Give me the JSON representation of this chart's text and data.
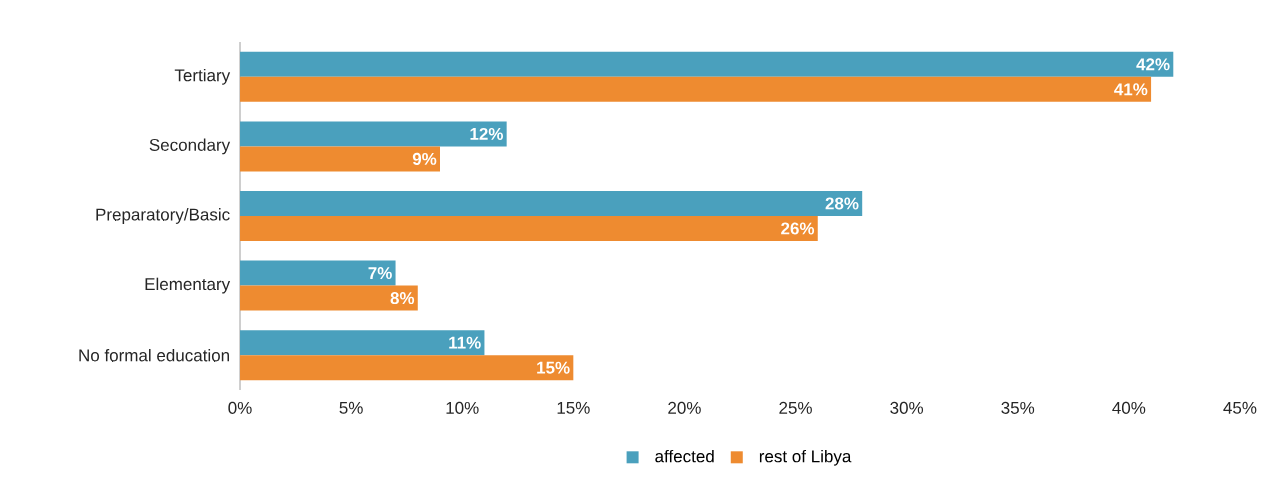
{
  "chart_data": {
    "type": "bar",
    "orientation": "horizontal",
    "categories": [
      "Tertiary",
      "Secondary",
      "Preparatory/Basic",
      "Elementary",
      "No formal education"
    ],
    "series": [
      {
        "name": "affected",
        "color": "#4aa0bd",
        "values": [
          42,
          12,
          28,
          7,
          11
        ],
        "value_labels": [
          "42%",
          "12%",
          "28%",
          "7%",
          "11%"
        ]
      },
      {
        "name": "rest of Libya",
        "color": "#ee8b30",
        "values": [
          41,
          9,
          26,
          8,
          15
        ],
        "value_labels": [
          "41%",
          "9%",
          "26%",
          "8%",
          "15%"
        ]
      }
    ],
    "xlim": [
      0,
      45
    ],
    "xticks": [
      {
        "value": 0,
        "label": "0%"
      },
      {
        "value": 5,
        "label": "5%"
      },
      {
        "value": 10,
        "label": "10%"
      },
      {
        "value": 15,
        "label": "15%"
      },
      {
        "value": 20,
        "label": "20%"
      },
      {
        "value": 25,
        "label": "25%"
      },
      {
        "value": 30,
        "label": "30%"
      },
      {
        "value": 35,
        "label": "35%"
      },
      {
        "value": 40,
        "label": "40%"
      },
      {
        "value": 45,
        "label": "45%"
      }
    ],
    "legend": "bottom"
  }
}
